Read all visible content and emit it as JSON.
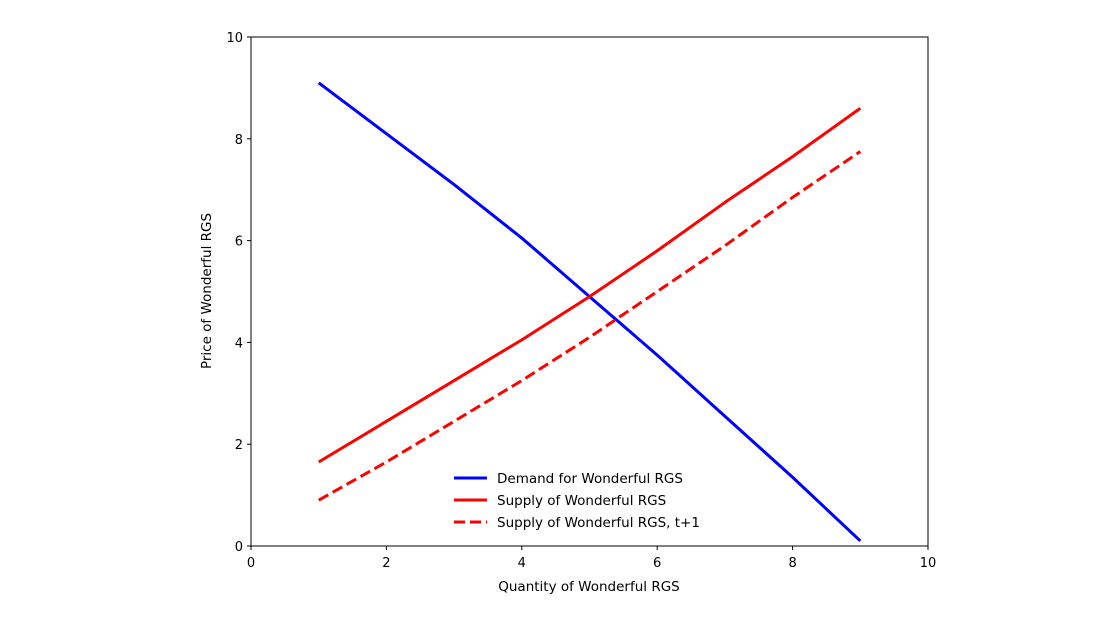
{
  "chart_data": {
    "type": "line",
    "title": "",
    "xlabel": "Quantity of Wonderful RGS",
    "ylabel": "Price of Wonderful RGS",
    "xlim": [
      0,
      10
    ],
    "ylim": [
      0,
      10
    ],
    "xticks": [
      0,
      2,
      4,
      6,
      8,
      10
    ],
    "yticks": [
      0,
      2,
      4,
      6,
      8,
      10
    ],
    "grid": false,
    "legend_position": "lower center",
    "x": [
      1,
      2,
      3,
      4,
      5,
      6,
      7,
      8,
      9
    ],
    "series": [
      {
        "name": "Demand for Wonderful RGS",
        "color": "#0000ff",
        "style": "solid",
        "values": [
          9.1,
          8.1,
          7.1,
          6.05,
          4.9,
          3.75,
          2.55,
          1.35,
          0.1
        ]
      },
      {
        "name": "Supply of Wonderful RGS",
        "color": "#ff0000",
        "style": "solid",
        "values": [
          1.65,
          2.45,
          3.25,
          4.05,
          4.9,
          5.8,
          6.75,
          7.65,
          8.6
        ]
      },
      {
        "name": "Supply of Wonderful RGS, t+1",
        "color": "#ff0000",
        "style": "dashed",
        "values": [
          0.9,
          1.65,
          2.45,
          3.25,
          4.1,
          5.0,
          5.9,
          6.85,
          7.75
        ]
      }
    ]
  }
}
